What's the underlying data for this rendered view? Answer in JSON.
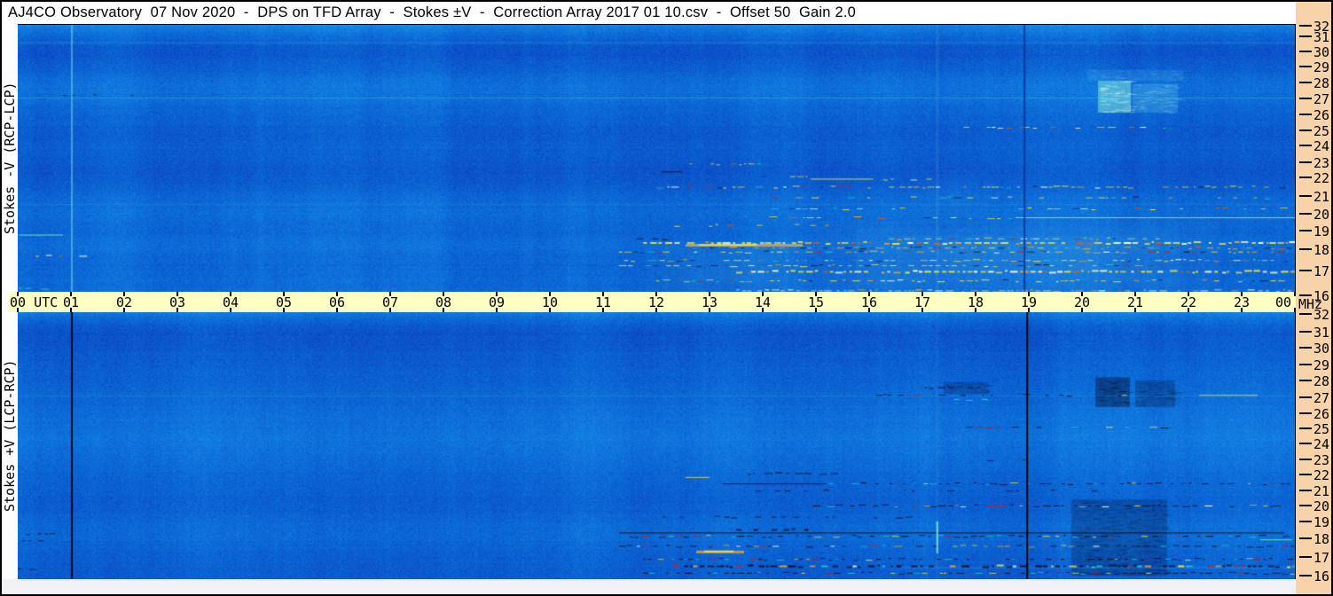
{
  "title_bar": {
    "text": "AJ4CO Observatory  07 Nov 2020  -  DPS on TFD Array  -  Stokes ±V  -  Correction Array 2017 01 10.csv  -  Offset 50  Gain 2.0"
  },
  "time_axis": {
    "label_left": "00 UTC",
    "hours": [
      "01",
      "02",
      "03",
      "04",
      "05",
      "06",
      "07",
      "08",
      "09",
      "10",
      "11",
      "12",
      "13",
      "14",
      "15",
      "16",
      "17",
      "18",
      "19",
      "20",
      "21",
      "22",
      "23"
    ],
    "label_right": "00",
    "band_color": "#ffffc4"
  },
  "freq_axis": {
    "unit": "MHz",
    "panel_color": "#f8d2a8",
    "tick_labels": [
      "32",
      "31",
      "30",
      "29",
      "28",
      "27",
      "26",
      "25",
      "24",
      "23",
      "22",
      "21",
      "20",
      "19",
      "18",
      "17",
      "16"
    ],
    "fractions_top": [
      0,
      0.039,
      0.095,
      0.151,
      0.21,
      0.269,
      0.328,
      0.387,
      0.443,
      0.505,
      0.564,
      0.63,
      0.698,
      0.761,
      0.83,
      0.908,
      1.0
    ],
    "fractions_bottom": [
      0,
      0.068,
      0.129,
      0.193,
      0.254,
      0.319,
      0.38,
      0.437,
      0.495,
      0.556,
      0.614,
      0.675,
      0.732,
      0.793,
      0.858,
      0.929,
      1.0
    ]
  },
  "colors": {
    "base_blue": "#0b66d4",
    "bright_cyan": "#8af0d8",
    "palettes": {
      "ym": [
        "#eee23a",
        "#eee23a",
        "#f0a42c",
        "#ffffff",
        "#d86018",
        "#20c8c8",
        "#151d70"
      ],
      "ym2": [
        "#eee23a",
        "#f0a42c",
        "#0a1238",
        "#c02020",
        "#20c8c8",
        "#ffffff"
      ],
      "ymw": [
        "#eee23a",
        "#ffffff",
        "#f0a42c",
        "#e05818",
        "#f8f8d0"
      ],
      "om": [
        "#f0a42c",
        "#e05818",
        "#eee23a",
        "#b01818",
        "#0a1238"
      ],
      "dk": [
        "#060c2e",
        "#04081e",
        "#10184a"
      ],
      "bm": [
        "#04081e",
        "#060c2e",
        "#eee23a",
        "#20c8c8",
        "#b02020"
      ],
      "bm2": [
        "#04081e",
        "#eee23a",
        "#f0a42c",
        "#ffffff",
        "#20c8c8",
        "#d02020",
        "#060c2e"
      ],
      "cy": [
        "#40e8d0",
        "#28c8f0"
      ]
    }
  },
  "chart_data": {
    "type": "heatmap",
    "x_axis": {
      "label": "UTC",
      "range_hours": [
        0,
        24
      ]
    },
    "y_axis": {
      "label": "MHz",
      "range": [
        32,
        16
      ],
      "scale": "measured"
    },
    "panels": [
      {
        "id": "top",
        "label": "Stokes -V (RCP-LCP)",
        "seed": 1337,
        "band_profile": [
          [
            0,
            34
          ],
          [
            0.01,
            22
          ],
          [
            0.04,
            4
          ],
          [
            0.08,
            -12
          ],
          [
            0.11,
            -14
          ],
          [
            0.15,
            -6
          ],
          [
            0.2,
            8
          ],
          [
            0.24,
            14
          ],
          [
            0.28,
            10
          ],
          [
            0.33,
            0
          ],
          [
            0.38,
            -6
          ],
          [
            0.42,
            -9
          ],
          [
            0.46,
            -4
          ],
          [
            0.5,
            -8
          ],
          [
            0.54,
            -13
          ],
          [
            0.58,
            -10
          ],
          [
            0.62,
            -2
          ],
          [
            0.66,
            5
          ],
          [
            0.7,
            9
          ],
          [
            0.74,
            5
          ],
          [
            0.78,
            3
          ],
          [
            0.82,
            10
          ],
          [
            0.86,
            6
          ],
          [
            0.9,
            2
          ],
          [
            0.94,
            4
          ],
          [
            1,
            6
          ]
        ],
        "vlines": [
          {
            "t": 1.017,
            "color": "#86f2e2",
            "w": 1,
            "alpha": 0.9
          },
          {
            "t": 18.92,
            "color": "#0b2f8e",
            "w": 2,
            "alpha": 0.8
          },
          {
            "t": 17.28,
            "color": "#9adef5",
            "w": 3,
            "alpha": 0.1
          }
        ],
        "patches": [
          {
            "type": "haze",
            "t0": 15.0,
            "t1": 22.6,
            "f0": 16.0,
            "f1": 19.6,
            "color": "#56ccec",
            "alpha": 0.16
          },
          {
            "type": "haze",
            "t0": 11.8,
            "t1": 15.0,
            "f0": 16.0,
            "f1": 18.4,
            "color": "#56ccec",
            "alpha": 0.1
          },
          {
            "type": "haze",
            "t0": 16.8,
            "t1": 18.2,
            "f0": 19.5,
            "f1": 22.5,
            "color": "#56ccec",
            "alpha": 0.07
          },
          {
            "type": "bright",
            "t0": 20.3,
            "t1": 20.92,
            "f0": 26.1,
            "f1": 28.1,
            "color": "#8af0d8",
            "alpha": 0.5
          },
          {
            "type": "bright",
            "t0": 20.95,
            "t1": 21.8,
            "f0": 26.1,
            "f1": 27.9,
            "color": "#74dce8",
            "alpha": 0.22
          },
          {
            "type": "bright",
            "t0": 20.1,
            "t1": 21.9,
            "f0": 28.1,
            "f1": 28.8,
            "color": "#68d4ec",
            "alpha": 0.12
          }
        ],
        "rows": [
          {
            "f": 30.6,
            "t0": 0,
            "t1": 24,
            "mode": "line",
            "color": "#4fc4f0",
            "alpha": 0.3
          },
          {
            "f": 27.05,
            "t0": 0,
            "t1": 24,
            "mode": "line",
            "color": "#54c8f2",
            "alpha": 0.35
          },
          {
            "f": 20.55,
            "t0": 0,
            "t1": 24,
            "mode": "line",
            "color": "#54c8f2",
            "alpha": 0.2
          },
          {
            "f": 27.2,
            "t0": 0.4,
            "t1": 2.5,
            "d": 0.3,
            "p": "dk"
          },
          {
            "f": 22.9,
            "t0": 12.5,
            "t1": 13.9,
            "d": 0.35,
            "p": "ym"
          },
          {
            "f": 22.4,
            "t0": 12.1,
            "t1": 12.5,
            "mode": "solid",
            "color": "#3a0a10",
            "alpha": 0.95
          },
          {
            "f": 22.1,
            "t0": 13.6,
            "t1": 15.3,
            "d": 0.3,
            "p": "ym"
          },
          {
            "f": 21.95,
            "t0": 14.9,
            "t1": 16.0,
            "mode": "solid",
            "color": "#e8e04a",
            "alpha": 0.9
          },
          {
            "f": 21.95,
            "t0": 16.0,
            "t1": 17.1,
            "d": 0.35,
            "p": "ym"
          },
          {
            "f": 21.5,
            "t0": 12.0,
            "t1": 24,
            "d": 0.5,
            "p": "ym2"
          },
          {
            "f": 20.9,
            "t0": 14.0,
            "t1": 24,
            "d": 0.22,
            "p": "ym2"
          },
          {
            "f": 20.3,
            "t0": 14.05,
            "t1": 16.6,
            "d": 0.4,
            "p": "ym"
          },
          {
            "f": 20.3,
            "t0": 18.8,
            "t1": 24,
            "d": 0.35,
            "p": "ym"
          },
          {
            "f": 19.8,
            "t0": 18.75,
            "t1": 24,
            "mode": "line",
            "color": "#b8e858",
            "alpha": 0.85
          },
          {
            "f": 19.8,
            "t0": 13.9,
            "t1": 18.7,
            "d": 0.3,
            "p": "ym"
          },
          {
            "f": 19.35,
            "t0": 12.2,
            "t1": 15.2,
            "d": 0.18,
            "p": "ym"
          },
          {
            "f": 25.2,
            "t0": 17.6,
            "t1": 21.6,
            "d": 0.3,
            "p": "ym"
          },
          {
            "f": 18.6,
            "t0": 16.2,
            "t1": 21.4,
            "d": 0.5,
            "p": "ym2"
          },
          {
            "f": 18.6,
            "t0": 11.3,
            "t1": 12.2,
            "d": 0.5,
            "p": "dk"
          },
          {
            "f": 18.35,
            "t0": 11.7,
            "t1": 24,
            "d": 0.75,
            "p": "ymw",
            "th": 2
          },
          {
            "f": 18.1,
            "t0": 12.5,
            "t1": 24,
            "d": 0.6,
            "p": "om"
          },
          {
            "f": 17.9,
            "t0": 11.3,
            "t1": 24,
            "d": 0.5,
            "p": "ym2"
          },
          {
            "f": 17.5,
            "t0": 11.3,
            "t1": 24,
            "d": 0.6,
            "p": "ym"
          },
          {
            "f": 17.25,
            "t0": 11.3,
            "t1": 21.4,
            "d": 0.55,
            "p": "ym2"
          },
          {
            "f": 16.95,
            "t0": 13.5,
            "t1": 24,
            "d": 0.8,
            "p": "ymw",
            "th": 2
          },
          {
            "f": 16.6,
            "t0": 12.0,
            "t1": 24,
            "d": 0.5,
            "p": "ym2"
          },
          {
            "f": 16.2,
            "t0": 13.5,
            "t1": 24,
            "d": 0.7,
            "p": "ymw"
          },
          {
            "f": 18.8,
            "t0": 0.02,
            "t1": 0.85,
            "mode": "solid",
            "color": "#7ce8c8",
            "alpha": 0.9
          },
          {
            "f": 17.7,
            "t0": 0.05,
            "t1": 1.3,
            "d": 0.3,
            "p": "ym"
          },
          {
            "f": 16.3,
            "t0": 0.02,
            "t1": 0.5,
            "d": 0.4,
            "p": "cy"
          },
          {
            "f": 18.25,
            "t0": 12.55,
            "t1": 14.75,
            "mode": "solid",
            "color": "#f0a83a",
            "alpha": 0.8,
            "th": 3
          },
          {
            "f": 18.25,
            "t0": 12.8,
            "t1": 13.9,
            "mode": "solid",
            "color": "#f2d83c",
            "alpha": 0.9,
            "th": 2
          }
        ]
      },
      {
        "id": "bottom",
        "label": "Stokes +V (LCP-RCP)",
        "seed": 7331,
        "band_profile": [
          [
            0,
            24
          ],
          [
            0.02,
            8
          ],
          [
            0.05,
            -8
          ],
          [
            0.08,
            -15
          ],
          [
            0.12,
            -12
          ],
          [
            0.17,
            -7
          ],
          [
            0.22,
            -3
          ],
          [
            0.27,
            1
          ],
          [
            0.32,
            4
          ],
          [
            0.37,
            9
          ],
          [
            0.43,
            14
          ],
          [
            0.48,
            17
          ],
          [
            0.52,
            13
          ],
          [
            0.57,
            7
          ],
          [
            0.62,
            2
          ],
          [
            0.66,
            -2
          ],
          [
            0.7,
            -5
          ],
          [
            0.74,
            -3
          ],
          [
            0.78,
            3
          ],
          [
            0.82,
            7
          ],
          [
            0.86,
            3
          ],
          [
            0.91,
            -3
          ],
          [
            0.96,
            -6
          ],
          [
            1,
            -9
          ]
        ],
        "vlines": [
          {
            "t": 1.017,
            "color": "#000000",
            "w": 2,
            "alpha": 0.95
          },
          {
            "t": 18.97,
            "color": "#000000",
            "w": 2,
            "alpha": 0.95
          },
          {
            "t": 17.28,
            "color": "#9adef5",
            "w": 3,
            "alpha": 0.06
          },
          {
            "t": 17.28,
            "color": "#8af2e0",
            "w": 2,
            "alpha": 0.8,
            "f0": 17.2,
            "f1": 19.0
          }
        ],
        "patches": [
          {
            "type": "dark",
            "t0": 19.8,
            "t1": 21.6,
            "f0": 16.0,
            "f1": 20.4,
            "color": "#071244",
            "alpha": 0.25
          },
          {
            "type": "dark",
            "t0": 20.25,
            "t1": 20.9,
            "f0": 26.4,
            "f1": 28.2,
            "color": "#050c30",
            "alpha": 0.4
          },
          {
            "type": "dark",
            "t0": 21.0,
            "t1": 21.75,
            "f0": 26.4,
            "f1": 28.0,
            "color": "#050c30",
            "alpha": 0.25
          },
          {
            "type": "dark",
            "t0": 17.4,
            "t1": 18.25,
            "f0": 27.2,
            "f1": 27.9,
            "color": "#050c30",
            "alpha": 0.2
          }
        ],
        "rows": [
          {
            "f": 16.45,
            "t0": 16.6,
            "t1": 24,
            "mode": "line",
            "color": "#58d0f0",
            "alpha": 0.3
          },
          {
            "f": 27.1,
            "t0": 0,
            "t1": 24,
            "mode": "line",
            "color": "#54c8f2",
            "alpha": 0.18
          },
          {
            "f": 27.6,
            "t0": 17.0,
            "t1": 18.3,
            "d": 0.3,
            "p": "dk"
          },
          {
            "f": 27.15,
            "t0": 15.8,
            "t1": 21.2,
            "d": 0.2,
            "p": "bm"
          },
          {
            "f": 27.15,
            "t0": 22.2,
            "t1": 23.3,
            "mode": "solid",
            "color": "#e8d83a",
            "alpha": 0.85
          },
          {
            "f": 26.9,
            "t0": 17.5,
            "t1": 18.2,
            "d": 0.3,
            "p": "cy"
          },
          {
            "f": 25.1,
            "t0": 17.6,
            "t1": 21.5,
            "d": 0.25,
            "p": "bm"
          },
          {
            "f": 23.0,
            "t0": 17.6,
            "t1": 19.6,
            "d": 0.22,
            "p": "dk"
          },
          {
            "f": 22.1,
            "t0": 13.4,
            "t1": 15.3,
            "d": 0.45,
            "p": "dk"
          },
          {
            "f": 21.85,
            "t0": 12.55,
            "t1": 13.0,
            "mode": "solid",
            "color": "#ecd83a",
            "alpha": 0.9
          },
          {
            "f": 21.45,
            "t0": 13.25,
            "t1": 15.2,
            "mode": "solid",
            "color": "#04081e",
            "alpha": 0.85
          },
          {
            "f": 21.45,
            "t0": 15.2,
            "t1": 24,
            "d": 0.45,
            "p": "bm"
          },
          {
            "f": 21.0,
            "t0": 13.7,
            "t1": 21.0,
            "d": 0.2,
            "p": "dk"
          },
          {
            "f": 20.0,
            "t0": 14.75,
            "t1": 24,
            "d": 0.5,
            "p": "bm2"
          },
          {
            "f": 19.3,
            "t0": 11.7,
            "t1": 16.7,
            "d": 0.14,
            "p": "dk"
          },
          {
            "f": 18.35,
            "t0": 11.3,
            "t1": 23.8,
            "mode": "line",
            "color": "#04091c",
            "alpha": 0.8
          },
          {
            "f": 18.5,
            "t0": 13.5,
            "t1": 14.8,
            "d": 0.5,
            "p": "dk",
            "th": 2
          },
          {
            "f": 18.15,
            "t0": 11.5,
            "t1": 24,
            "d": 0.5,
            "p": "bm"
          },
          {
            "f": 17.95,
            "t0": 23.35,
            "t1": 23.95,
            "mode": "solid",
            "color": "#6ee8a8",
            "alpha": 0.9
          },
          {
            "f": 17.6,
            "t0": 11.3,
            "t1": 24,
            "d": 0.45,
            "p": "bm2"
          },
          {
            "f": 16.9,
            "t0": 11.7,
            "t1": 24,
            "d": 0.5,
            "p": "bm"
          },
          {
            "f": 16.5,
            "t0": 12.3,
            "t1": 24,
            "d": 0.65,
            "p": "bm2",
            "th": 2
          },
          {
            "f": 16.15,
            "t0": 11.7,
            "t1": 24,
            "d": 0.6,
            "p": "bm"
          },
          {
            "f": 18.3,
            "t0": 0.0,
            "t1": 0.65,
            "d": 0.5,
            "p": "dk"
          },
          {
            "f": 17.9,
            "t0": 0.0,
            "t1": 0.45,
            "d": 0.4,
            "p": "dk"
          },
          {
            "f": 16.4,
            "t0": 0.0,
            "t1": 0.25,
            "d": 0.5,
            "p": "dk"
          },
          {
            "f": 17.3,
            "t0": 12.75,
            "t1": 13.65,
            "mode": "solid",
            "color": "#f0a028",
            "alpha": 0.85,
            "th": 3
          },
          {
            "f": 17.3,
            "t0": 12.9,
            "t1": 13.45,
            "mode": "solid",
            "color": "#f4e23c",
            "alpha": 0.9,
            "th": 2
          }
        ]
      }
    ]
  }
}
